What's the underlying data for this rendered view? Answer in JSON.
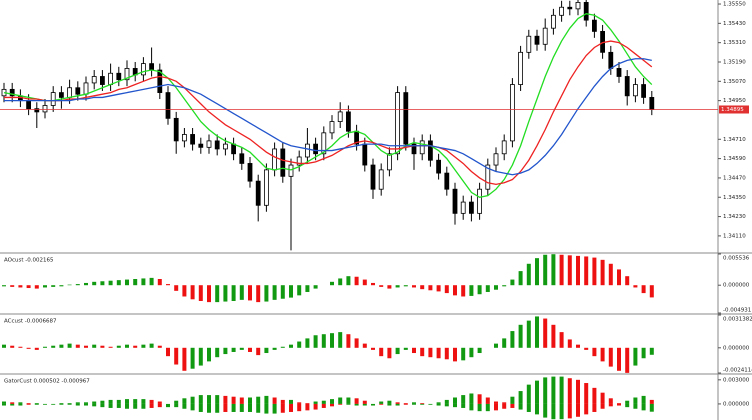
{
  "chart_data": [
    {
      "type": "candlestick",
      "open": [
        1.3498,
        1.3502,
        1.3498,
        1.3495,
        1.349,
        1.3488,
        1.3492,
        1.35,
        1.3497,
        1.3503,
        1.3499,
        1.3506,
        1.351,
        1.3505,
        1.3512,
        1.3508,
        1.3515,
        1.3511,
        1.3518,
        1.3514,
        1.35,
        1.3484,
        1.347,
        1.3474,
        1.3468,
        1.3466,
        1.347,
        1.3465,
        1.3468,
        1.3462,
        1.3456,
        1.3445,
        1.343,
        1.3452,
        1.3465,
        1.3448,
        1.3455,
        1.346,
        1.3468,
        1.3462,
        1.3475,
        1.3482,
        1.3488,
        1.3476,
        1.3468,
        1.3455,
        1.344,
        1.3452,
        1.3462,
        1.35,
        1.3468,
        1.3462,
        1.347,
        1.3458,
        1.345,
        1.344,
        1.3425,
        1.3432,
        1.3425,
        1.344,
        1.3455,
        1.3462,
        1.347,
        1.3505,
        1.3525,
        1.3535,
        1.353,
        1.354,
        1.3548,
        1.3553,
        1.3552,
        1.3556,
        1.3545,
        1.3538,
        1.3525,
        1.3515,
        1.351,
        1.3498,
        1.3505,
        1.3497
      ],
      "high": [
        1.3506,
        1.3506,
        1.3502,
        1.3499,
        1.3494,
        1.3496,
        1.3504,
        1.3504,
        1.3508,
        1.3507,
        1.351,
        1.3514,
        1.3514,
        1.3518,
        1.3516,
        1.352,
        1.3519,
        1.3522,
        1.3528,
        1.3518,
        1.3504,
        1.3488,
        1.3478,
        1.3478,
        1.3472,
        1.3474,
        1.3474,
        1.3472,
        1.3472,
        1.3466,
        1.346,
        1.3449,
        1.3456,
        1.3469,
        1.3469,
        1.3459,
        1.3464,
        1.3478,
        1.3472,
        1.3479,
        1.3486,
        1.3494,
        1.3492,
        1.348,
        1.3472,
        1.3459,
        1.3456,
        1.3466,
        1.3504,
        1.3504,
        1.3472,
        1.3474,
        1.3474,
        1.3462,
        1.3454,
        1.3444,
        1.3436,
        1.3436,
        1.3444,
        1.3459,
        1.3466,
        1.3474,
        1.3509,
        1.3529,
        1.3539,
        1.3539,
        1.3546,
        1.3552,
        1.3557,
        1.3557,
        1.356,
        1.356,
        1.3549,
        1.3542,
        1.3529,
        1.3519,
        1.3514,
        1.3509,
        1.3509,
        1.3501
      ],
      "low": [
        1.3494,
        1.3494,
        1.3491,
        1.3486,
        1.3478,
        1.3484,
        1.3488,
        1.349,
        1.3493,
        1.3495,
        1.3495,
        1.3502,
        1.3501,
        1.3501,
        1.3504,
        1.3504,
        1.3507,
        1.3507,
        1.351,
        1.3496,
        1.348,
        1.3462,
        1.3466,
        1.3464,
        1.3462,
        1.3462,
        1.3461,
        1.3461,
        1.3458,
        1.3452,
        1.3441,
        1.342,
        1.3426,
        1.3448,
        1.3444,
        1.3402,
        1.3451,
        1.3456,
        1.3458,
        1.3458,
        1.3471,
        1.3478,
        1.3472,
        1.3464,
        1.3451,
        1.3434,
        1.3436,
        1.3448,
        1.3458,
        1.3464,
        1.3452,
        1.3458,
        1.3454,
        1.3446,
        1.3436,
        1.3418,
        1.3421,
        1.342,
        1.3421,
        1.3436,
        1.3451,
        1.3458,
        1.3466,
        1.3501,
        1.3521,
        1.3526,
        1.3526,
        1.3536,
        1.3544,
        1.3548,
        1.3548,
        1.3541,
        1.3534,
        1.3521,
        1.3511,
        1.3506,
        1.3492,
        1.3494,
        1.3493,
        1.3486
      ],
      "close": [
        1.3502,
        1.3498,
        1.3495,
        1.349,
        1.3488,
        1.3492,
        1.35,
        1.3497,
        1.3503,
        1.3499,
        1.3506,
        1.351,
        1.3505,
        1.3512,
        1.3508,
        1.3515,
        1.3511,
        1.3518,
        1.3514,
        1.35,
        1.3484,
        1.347,
        1.3474,
        1.3468,
        1.3466,
        1.347,
        1.3465,
        1.3468,
        1.3462,
        1.3456,
        1.3445,
        1.343,
        1.3452,
        1.3465,
        1.3448,
        1.3455,
        1.346,
        1.3468,
        1.3462,
        1.3475,
        1.3482,
        1.3488,
        1.3476,
        1.3468,
        1.3455,
        1.344,
        1.3452,
        1.3462,
        1.35,
        1.3468,
        1.3462,
        1.347,
        1.3458,
        1.345,
        1.344,
        1.3425,
        1.3432,
        1.3425,
        1.344,
        1.3455,
        1.3462,
        1.347,
        1.3505,
        1.3525,
        1.3535,
        1.353,
        1.354,
        1.3548,
        1.3553,
        1.3552,
        1.3556,
        1.3545,
        1.3538,
        1.3525,
        1.3515,
        1.351,
        1.3498,
        1.3505,
        1.3497,
        1.34895
      ],
      "bull_color": "#ffffff",
      "bear_color": "#000000",
      "series": [
        {
          "color": "#22dd22",
          "values": [
            1.35,
            1.3499,
            1.3498,
            1.3497,
            1.3496,
            1.3495,
            1.3495,
            1.3496,
            1.3497,
            1.3498,
            1.3499,
            1.3501,
            1.3503,
            1.3505,
            1.3507,
            1.3509,
            1.3511,
            1.3513,
            1.3514,
            1.3513,
            1.3509,
            1.3503,
            1.3496,
            1.3489,
            1.3482,
            1.3477,
            1.3473,
            1.347,
            1.3468,
            1.3466,
            1.3463,
            1.3458,
            1.3453,
            1.3452,
            1.3453,
            1.3452,
            1.3454,
            1.3457,
            1.346,
            1.3463,
            1.3467,
            1.3472,
            1.3475,
            1.3476,
            1.3474,
            1.3469,
            1.3464,
            1.3461,
            1.3463,
            1.3467,
            1.3469,
            1.3468,
            1.3467,
            1.3464,
            1.3459,
            1.3452,
            1.3445,
            1.3438,
            1.3435,
            1.3436,
            1.344,
            1.3446,
            1.3455,
            1.3467,
            1.3482,
            1.3496,
            1.351,
            1.3522,
            1.3532,
            1.354,
            1.3546,
            1.3549,
            1.3548,
            1.3545,
            1.3539,
            1.3532,
            1.3524,
            1.3516,
            1.351,
            1.3505
          ]
        },
        {
          "color": "#ee2222",
          "values": [
            1.3497,
            1.3497,
            1.3497,
            1.3496,
            1.3496,
            1.3495,
            1.3495,
            1.3495,
            1.3496,
            1.3496,
            1.3497,
            1.3498,
            1.3499,
            1.35,
            1.3502,
            1.3503,
            1.3505,
            1.3507,
            1.3509,
            1.351,
            1.3509,
            1.3507,
            1.3503,
            1.3498,
            1.3493,
            1.3488,
            1.3484,
            1.348,
            1.3477,
            1.3474,
            1.3471,
            1.3467,
            1.3463,
            1.346,
            1.3458,
            1.3457,
            1.3456,
            1.3456,
            1.3457,
            1.3459,
            1.3461,
            1.3464,
            1.3467,
            1.3469,
            1.347,
            1.3469,
            1.3467,
            1.3465,
            1.3465,
            1.3466,
            1.3467,
            1.3467,
            1.3467,
            1.3466,
            1.3464,
            1.346,
            1.3456,
            1.3451,
            1.3447,
            1.3444,
            1.3443,
            1.3444,
            1.3446,
            1.3451,
            1.3458,
            1.3467,
            1.3477,
            1.3488,
            1.3498,
            1.3508,
            1.3516,
            1.3523,
            1.3528,
            1.3531,
            1.3532,
            1.3531,
            1.3528,
            1.3524,
            1.352,
            1.3516
          ]
        },
        {
          "color": "#2255cc",
          "values": [
            1.3495,
            1.3495,
            1.3495,
            1.3495,
            1.3495,
            1.3495,
            1.3495,
            1.3495,
            1.3495,
            1.3496,
            1.3496,
            1.3497,
            1.3497,
            1.3498,
            1.3499,
            1.35,
            1.3501,
            1.3502,
            1.3503,
            1.3504,
            1.3505,
            1.3504,
            1.3503,
            1.3501,
            1.3499,
            1.3496,
            1.3493,
            1.349,
            1.3487,
            1.3484,
            1.3481,
            1.3478,
            1.3475,
            1.3472,
            1.3469,
            1.3467,
            1.3466,
            1.3465,
            1.3464,
            1.3464,
            1.3464,
            1.3465,
            1.3466,
            1.3467,
            1.3468,
            1.3468,
            1.3468,
            1.3467,
            1.3467,
            1.3467,
            1.3467,
            1.3467,
            1.3467,
            1.3466,
            1.3465,
            1.3464,
            1.3462,
            1.3459,
            1.3456,
            1.3453,
            1.3451,
            1.345,
            1.3449,
            1.345,
            1.3452,
            1.3456,
            1.3461,
            1.3467,
            1.3474,
            1.3482,
            1.349,
            1.3497,
            1.3504,
            1.351,
            1.3515,
            1.3518,
            1.352,
            1.3521,
            1.3521,
            1.352
          ]
        }
      ],
      "current_price": {
        "value": 1.34895,
        "label": "1.34895"
      },
      "price_color": "#e03030",
      "ylim": [
        1.3401,
        1.35575
      ],
      "yticks": [
        {
          "value": 1.3555,
          "label": "1.35550"
        },
        {
          "value": 1.3543,
          "label": "1.35430"
        },
        {
          "value": 1.3531,
          "label": "1.35310"
        },
        {
          "value": 1.3519,
          "label": "1.35190"
        },
        {
          "value": 1.3507,
          "label": "1.35070"
        },
        {
          "value": 1.3495,
          "label": "1.34950"
        },
        {
          "value": 1.3471,
          "label": "1.34710"
        },
        {
          "value": 1.3459,
          "label": "1.34590"
        },
        {
          "value": 1.3447,
          "label": "1.34470"
        },
        {
          "value": 1.3435,
          "label": "1.34350"
        },
        {
          "value": 1.3423,
          "label": "1.34230"
        },
        {
          "value": 1.3411,
          "label": "1.34110"
        }
      ]
    },
    {
      "type": "histogram",
      "title": "AOcust -0.002165",
      "values": [
        -0.0002,
        -0.0003,
        -0.0004,
        -0.0005,
        -0.0006,
        -0.0004,
        -0.0003,
        -0.0002,
        0.0001,
        0.0002,
        0.0004,
        0.0006,
        0.0007,
        0.0008,
        0.0009,
        0.001,
        0.0011,
        0.0012,
        0.0013,
        0.0011,
        0.0002,
        -0.001,
        -0.002,
        -0.0025,
        -0.0028,
        -0.003,
        -0.003,
        -0.0029,
        -0.0028,
        -0.0026,
        -0.0027,
        -0.003,
        -0.0029,
        -0.0026,
        -0.0024,
        -0.0022,
        -0.0018,
        -0.0012,
        -0.0006,
        0.0,
        0.0006,
        0.0012,
        0.0016,
        0.0015,
        0.001,
        0.0004,
        -0.0003,
        -0.0006,
        -0.0004,
        -0.0002,
        -0.0004,
        -0.0007,
        -0.0009,
        -0.0011,
        -0.0014,
        -0.0018,
        -0.002,
        -0.0019,
        -0.0016,
        -0.0012,
        -0.0008,
        -0.0002,
        0.001,
        0.0025,
        0.0038,
        0.0048,
        0.0054,
        0.0055,
        0.0054,
        0.0053,
        0.0052,
        0.0051,
        0.0049,
        0.0045,
        0.0038,
        0.0028,
        0.0016,
        -0.0004,
        -0.0014,
        -0.002165
      ],
      "up_color": "#119911",
      "down_color": "#ee1111",
      "ylim": [
        -0.004931,
        0.005536
      ],
      "yticks": [
        0.005536,
        {
          "value": 0,
          "label": "0.000000"
        },
        -0.004931
      ]
    },
    {
      "type": "histogram",
      "title": "ACcust -0.0006687",
      "values": [
        0.0003,
        0.0002,
        0.0001,
        -0.0001,
        -0.0002,
        0.0001,
        0.0002,
        0.0003,
        0.0004,
        0.0003,
        0.0002,
        0.0003,
        0.0002,
        0.0001,
        0.0002,
        0.0003,
        0.0002,
        0.0003,
        0.0004,
        0.0002,
        -0.0008,
        -0.0016,
        -0.0022,
        -0.002,
        -0.0017,
        -0.0013,
        -0.0009,
        -0.0006,
        -0.0004,
        -0.0002,
        -0.0004,
        -0.0007,
        -0.0005,
        -0.0002,
        0.0001,
        0.0003,
        0.0006,
        0.0009,
        0.0012,
        0.0013,
        0.0014,
        0.0015,
        0.0013,
        0.0009,
        0.0004,
        -0.0002,
        -0.0008,
        -0.001,
        -0.0006,
        -0.0002,
        -0.0005,
        -0.0008,
        -0.0009,
        -0.001,
        -0.0011,
        -0.0013,
        -0.0012,
        -0.0009,
        -0.0005,
        0.0,
        0.0004,
        0.0009,
        0.0016,
        0.0022,
        0.0026,
        0.003,
        0.0028,
        0.0022,
        0.0015,
        0.0008,
        0.0003,
        -0.0002,
        -0.0008,
        -0.0013,
        -0.0018,
        -0.0022,
        -0.0024,
        -0.0017,
        -0.001,
        -0.0006687
      ],
      "up_color": "#119911",
      "down_color": "#ee1111",
      "ylim": [
        -0.0024114,
        0.0031382
      ],
      "yticks": [
        0.0031382,
        {
          "value": 0,
          "label": "0.000000"
        },
        -0.0024114
      ]
    },
    {
      "type": "gator",
      "title": "GatorCust 0.000502 -0.000967",
      "series": [
        {
          "values": [
            0.0003,
            0.0002,
            0.0002,
            0.0001,
            0.0001,
            0.0,
            0.0,
            0.0001,
            0.0001,
            0.0002,
            0.0002,
            0.0003,
            0.0004,
            0.0005,
            0.0005,
            0.0006,
            0.0006,
            0.0006,
            0.0005,
            0.0003,
            0.0,
            0.0004,
            0.0007,
            0.0009,
            0.0011,
            0.0011,
            0.0011,
            0.001,
            0.0009,
            0.0008,
            0.0008,
            0.0009,
            0.001,
            0.0008,
            0.0005,
            0.0005,
            0.0002,
            0.0001,
            0.0003,
            0.0004,
            0.0006,
            0.0008,
            0.0008,
            0.0007,
            0.0004,
            0.0,
            0.0003,
            0.0004,
            0.0002,
            0.0001,
            0.0002,
            0.0001,
            0.0,
            0.0002,
            0.0005,
            0.0008,
            0.0011,
            0.0013,
            0.0012,
            0.0008,
            0.0003,
            0.0002,
            0.0009,
            0.0016,
            0.0024,
            0.0029,
            0.0033,
            0.0034,
            0.0034,
            0.0032,
            0.003,
            0.0026,
            0.002,
            0.0014,
            0.0007,
            0.0001,
            0.0004,
            0.0008,
            0.001,
            0.000502
          ]
        },
        {
          "values": [
            -0.0002,
            -0.0002,
            -0.0002,
            -0.0001,
            -0.0001,
            -0.0001,
            -0.0001,
            -0.0001,
            -0.0001,
            -0.0002,
            -0.0002,
            -0.0003,
            -0.0004,
            -0.0005,
            -0.0005,
            -0.0006,
            -0.0006,
            -0.0006,
            -0.0005,
            -0.0004,
            -0.0004,
            -0.0004,
            -0.0006,
            -0.0008,
            -0.001,
            -0.0011,
            -0.0011,
            -0.001,
            -0.001,
            -0.001,
            -0.001,
            -0.0011,
            -0.0012,
            -0.0012,
            -0.0011,
            -0.001,
            -0.0009,
            -0.0008,
            -0.0007,
            -0.0005,
            -0.0003,
            -0.0001,
            -0.0001,
            -0.0002,
            -0.0002,
            -0.0002,
            -0.0001,
            -0.0002,
            -0.0002,
            -0.0001,
            -0.0001,
            -0.0001,
            -0.0001,
            -0.0002,
            -0.0003,
            -0.0004,
            -0.0005,
            -0.0008,
            -0.0009,
            -0.0009,
            -0.0008,
            -0.0006,
            -0.0005,
            -0.0007,
            -0.001,
            -0.0013,
            -0.0017,
            -0.0019,
            -0.0019,
            -0.0018,
            -0.0016,
            -0.0013,
            -0.001,
            -0.0006,
            -0.0003,
            -0.0002,
            -0.0004,
            -0.0006,
            -0.0008,
            -0.000967
          ]
        }
      ],
      "up_color": "#119911",
      "down_color": "#ee1111",
      "ylim": [
        -0.002,
        0.0036
      ],
      "yticks": [
        {
          "value": 0.003,
          "label": "0.003000"
        },
        {
          "value": 0,
          "label": "0.000000"
        }
      ]
    }
  ]
}
